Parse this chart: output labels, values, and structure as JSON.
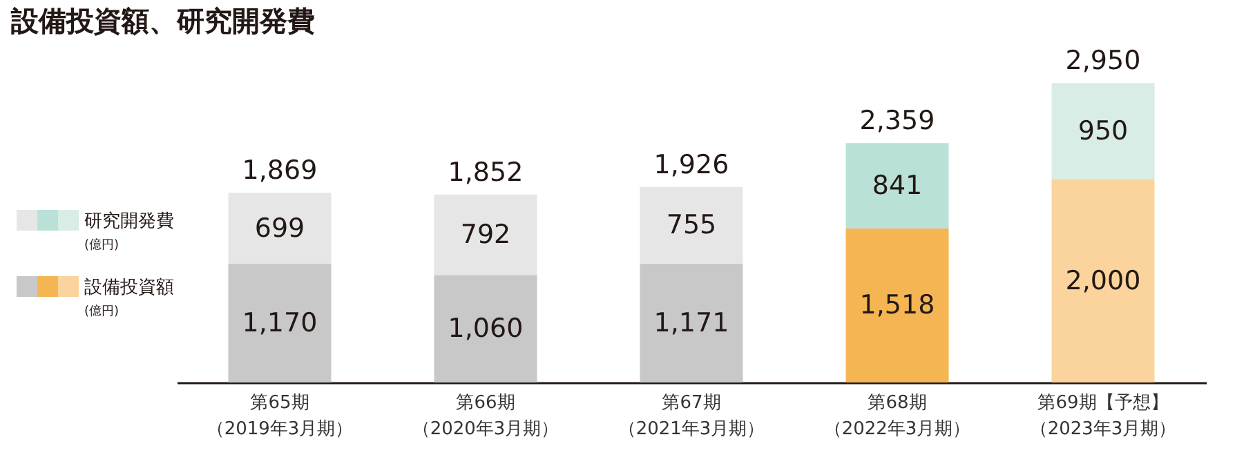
{
  "chart_data": {
    "type": "bar",
    "title": "設備投資額、研究開発費",
    "stacked": true,
    "legend": "left",
    "categories": [
      "第65期（2019年3月期）",
      "第66期（2020年3月期）",
      "第67期（2021年3月期）",
      "第68期（2022年3月期）",
      "第69期【予想】（2023年3月期）"
    ],
    "series": [
      {
        "name": "設備投資額(億円)",
        "colors": [
          "#c8c8c8",
          "#c8c8c8",
          "#c8c8c8",
          "#f5b553",
          "#fad49c"
        ],
        "values": [
          1170,
          1060,
          1171,
          1518,
          2000
        ],
        "value_labels": [
          "1,170",
          "1,060",
          "1,171",
          "1,518",
          "2,000"
        ]
      },
      {
        "name": "研究開発費(億円)",
        "colors": [
          "#e6e6e6",
          "#e6e6e6",
          "#e6e6e6",
          "#b9e1d8",
          "#d7ede6"
        ],
        "values": [
          699,
          792,
          755,
          841,
          950
        ],
        "value_labels": [
          "699",
          "792",
          "755",
          "841",
          "950"
        ]
      }
    ],
    "totals": [
      "1,869",
      "1,852",
      "1,926",
      "2,359",
      "2,950"
    ]
  }
}
